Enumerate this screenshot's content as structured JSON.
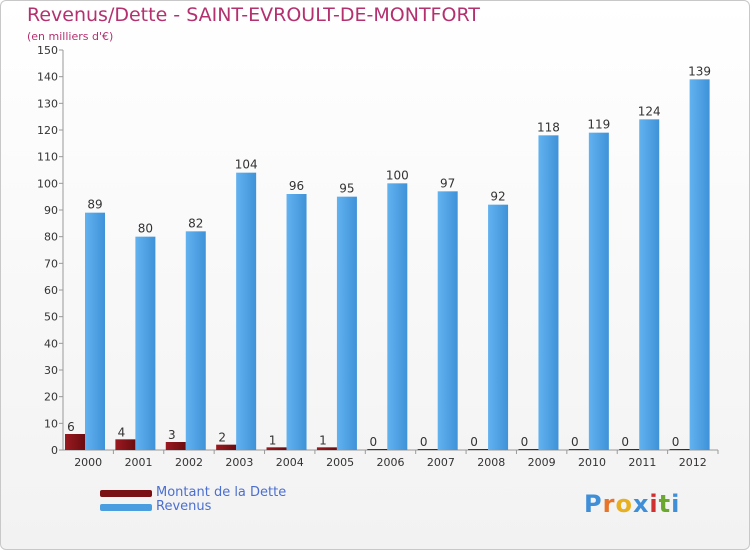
{
  "title": "Revenus/Dette - SAINT-EVROULT-DE-MONTFORT",
  "subtitle": "(en milliers d'€)",
  "chart_data": {
    "type": "bar",
    "title": "Revenus/Dette - SAINT-EVROULT-DE-MONTFORT",
    "ylabel": "(en milliers d'€)",
    "xlabel": "",
    "categories": [
      "2000",
      "2001",
      "2002",
      "2003",
      "2004",
      "2005",
      "2006",
      "2007",
      "2008",
      "2009",
      "2010",
      "2011",
      "2012"
    ],
    "series": [
      {
        "name": "Montant de la Dette",
        "color": "#7a1014",
        "values": [
          6,
          4,
          3,
          2,
          1,
          1,
          0,
          0,
          0,
          0,
          0,
          0,
          0
        ]
      },
      {
        "name": "Revenus",
        "color": "#4a9ee0",
        "values": [
          89,
          80,
          82,
          104,
          96,
          95,
          100,
          97,
          92,
          118,
          119,
          124,
          139
        ]
      }
    ],
    "ylim": [
      0,
      150
    ],
    "yticks": [
      0,
      10,
      20,
      30,
      40,
      50,
      60,
      70,
      80,
      90,
      100,
      110,
      120,
      130,
      140,
      150
    ],
    "grid": false,
    "legend_position": "bottom-left"
  },
  "legend": {
    "items": [
      {
        "label": "Montant de la Dette",
        "color": "#7a1014"
      },
      {
        "label": "Revenus",
        "color": "#4a9ee0"
      }
    ]
  },
  "logo": {
    "letters": [
      "P",
      "r",
      "o",
      "x",
      "i",
      "t",
      "i"
    ],
    "colors": [
      "#3f8fd8",
      "#e8742a",
      "#e8b020",
      "#3f8fd8",
      "#d03030",
      "#6aa830",
      "#3f8fd8"
    ]
  }
}
